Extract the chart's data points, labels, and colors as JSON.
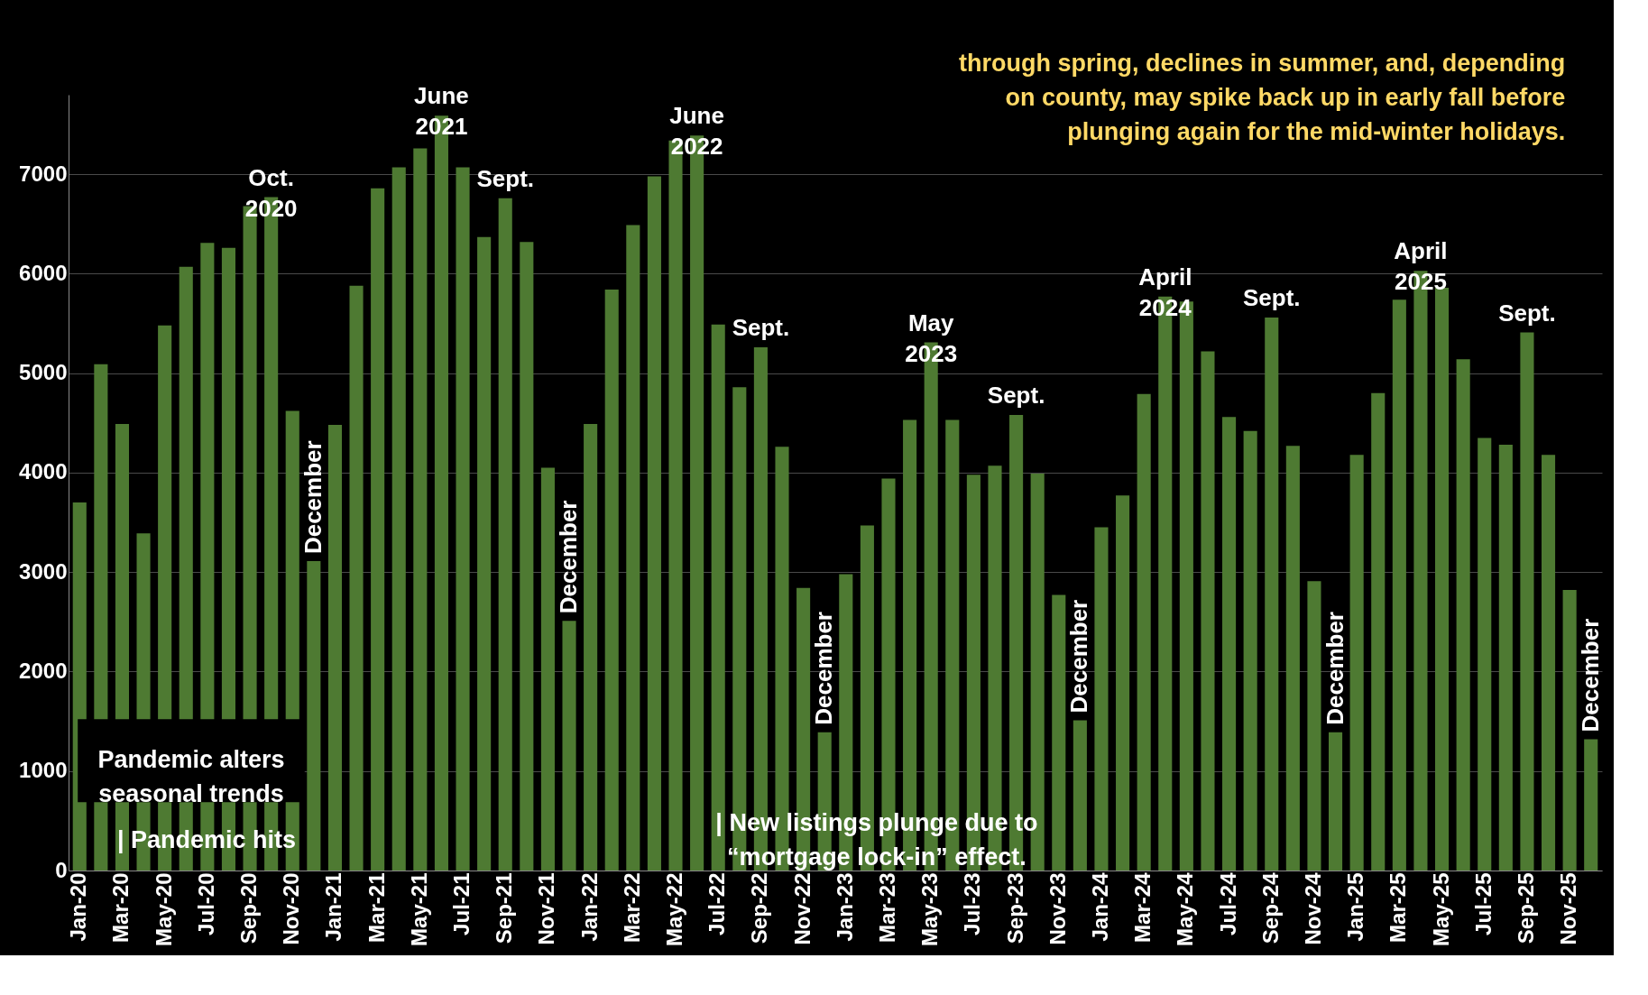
{
  "chart_data": {
    "type": "bar",
    "x": [
      "2020-01",
      "2020-02",
      "2020-03",
      "2020-04",
      "2020-05",
      "2020-06",
      "2020-07",
      "2020-08",
      "2020-09",
      "2020-10",
      "2020-11",
      "2020-12",
      "2021-01",
      "2021-02",
      "2021-03",
      "2021-04",
      "2021-05",
      "2021-06",
      "2021-07",
      "2021-08",
      "2021-09",
      "2021-10",
      "2021-11",
      "2021-12",
      "2022-01",
      "2022-02",
      "2022-03",
      "2022-04",
      "2022-05",
      "2022-06",
      "2022-07",
      "2022-08",
      "2022-09",
      "2022-10",
      "2022-11",
      "2022-12",
      "2023-01",
      "2023-02",
      "2023-03",
      "2023-04",
      "2023-05",
      "2023-06",
      "2023-07",
      "2023-08",
      "2023-09",
      "2023-10",
      "2023-11",
      "2023-12",
      "2024-01",
      "2024-02",
      "2024-03",
      "2024-04",
      "2024-05",
      "2024-06",
      "2024-07",
      "2024-08",
      "2024-09",
      "2024-10",
      "2024-11",
      "2024-12",
      "2025-01",
      "2025-02",
      "2025-03",
      "2025-04",
      "2025-05",
      "2025-06",
      "2025-07",
      "2025-08",
      "2025-09",
      "2025-10",
      "2025-11",
      "2025-12"
    ],
    "series": [
      {
        "color": "#4e7a32",
        "values": [
          3700,
          5090,
          4490,
          3390,
          5480,
          6070,
          6310,
          6260,
          6680,
          6770,
          4620,
          3110,
          4480,
          5880,
          6860,
          7070,
          7260,
          7590,
          7070,
          6370,
          6760,
          6320,
          4050,
          2510,
          4490,
          5840,
          6490,
          6980,
          7340,
          7390,
          5490,
          4860,
          5260,
          4260,
          2840,
          1390,
          2980,
          3470,
          3940,
          4530,
          5310,
          4530,
          3980,
          4070,
          4580,
          3990,
          2770,
          1510,
          3450,
          3770,
          4790,
          5770,
          5720,
          5220,
          4560,
          4420,
          5560,
          4270,
          2910,
          1390,
          4180,
          4800,
          5740,
          6030,
          5860,
          5140,
          4350,
          4280,
          5410,
          4180,
          2820,
          1320
        ]
      }
    ],
    "xticks": [
      {
        "value": "2020-01",
        "label": "Jan-20"
      },
      {
        "value": "2020-03",
        "label": "Mar-20"
      },
      {
        "value": "2020-05",
        "label": "May-20"
      },
      {
        "value": "2020-07",
        "label": "Jul-20"
      },
      {
        "value": "2020-09",
        "label": "Sep-20"
      },
      {
        "value": "2020-11",
        "label": "Nov-20"
      },
      {
        "value": "2021-01",
        "label": "Jan-21"
      },
      {
        "value": "2021-03",
        "label": "Mar-21"
      },
      {
        "value": "2021-05",
        "label": "May-21"
      },
      {
        "value": "2021-07",
        "label": "Jul-21"
      },
      {
        "value": "2021-09",
        "label": "Sep-21"
      },
      {
        "value": "2021-11",
        "label": "Nov-21"
      },
      {
        "value": "2022-01",
        "label": "Jan-22"
      },
      {
        "value": "2022-03",
        "label": "Mar-22"
      },
      {
        "value": "2022-05",
        "label": "May-22"
      },
      {
        "value": "2022-07",
        "label": "Jul-22"
      },
      {
        "value": "2022-09",
        "label": "Sep-22"
      },
      {
        "value": "2022-11",
        "label": "Nov-22"
      },
      {
        "value": "2023-01",
        "label": "Jan-23"
      },
      {
        "value": "2023-03",
        "label": "Mar-23"
      },
      {
        "value": "2023-05",
        "label": "May-23"
      },
      {
        "value": "2023-07",
        "label": "Jul-23"
      },
      {
        "value": "2023-09",
        "label": "Sep-23"
      },
      {
        "value": "2023-11",
        "label": "Nov-23"
      },
      {
        "value": "2024-01",
        "label": "Jan-24"
      },
      {
        "value": "2024-03",
        "label": "Mar-24"
      },
      {
        "value": "2024-05",
        "label": "May-24"
      },
      {
        "value": "2024-07",
        "label": "Jul-24"
      },
      {
        "value": "2024-09",
        "label": "Sep-24"
      },
      {
        "value": "2024-11",
        "label": "Nov-24"
      },
      {
        "value": "2025-01",
        "label": "Jan-25"
      },
      {
        "value": "2025-03",
        "label": "Mar-25"
      },
      {
        "value": "2025-05",
        "label": "May-25"
      },
      {
        "value": "2025-07",
        "label": "Jul-25"
      },
      {
        "value": "2025-09",
        "label": "Sep-25"
      },
      {
        "value": "2025-11",
        "label": "Nov-25"
      }
    ],
    "xlim": [
      "2020-01",
      "2025-12"
    ],
    "ylim": [
      0,
      7800
    ],
    "yticks": [
      0,
      1000,
      2000,
      3000,
      4000,
      5000,
      6000,
      7000
    ],
    "grid": "y",
    "annotations": [
      "through spring, declines in summer, and, depending\non county, may spike back up in early fall before\nplunging again for the mid-winter holidays.",
      {
        "text": "Oct.\n2020",
        "x": "2020-10",
        "y": 6770
      },
      {
        "text": "December",
        "x": "2020-12",
        "y": 3110
      },
      {
        "text": "June\n2021",
        "x": "2021-06",
        "y": 7590
      },
      {
        "text": "Sept.",
        "x": "2021-09",
        "y": 6760
      },
      {
        "text": "December",
        "x": "2021-12",
        "y": 2510
      },
      {
        "text": "June\n2022",
        "x": "2022-06",
        "y": 7390
      },
      {
        "text": "Sept.",
        "x": "2022-09",
        "y": 5260
      },
      {
        "text": "December",
        "x": "2022-12",
        "y": 1390
      },
      {
        "text": "May\n2023",
        "x": "2023-05",
        "y": 5310
      },
      {
        "text": "Sept.",
        "x": "2023-09",
        "y": 4580
      },
      {
        "text": "December",
        "x": "2023-12",
        "y": 1510
      },
      {
        "text": "April\n2024",
        "x": "2024-04",
        "y": 5770
      },
      {
        "text": "Sept.",
        "x": "2024-09",
        "y": 5560
      },
      {
        "text": "December",
        "x": "2024-12",
        "y": 1390
      },
      {
        "text": "April\n2025",
        "x": "2025-04",
        "y": 6030
      },
      {
        "text": "Sept.",
        "x": "2025-09",
        "y": 5410
      },
      {
        "text": "December",
        "x": "2025-12",
        "y": 1320
      },
      "Pandemic alters\nseasonal trends",
      "| Pandemic hits",
      "| New listings plunge due to\n“mortgage lock-in” effect."
    ]
  }
}
